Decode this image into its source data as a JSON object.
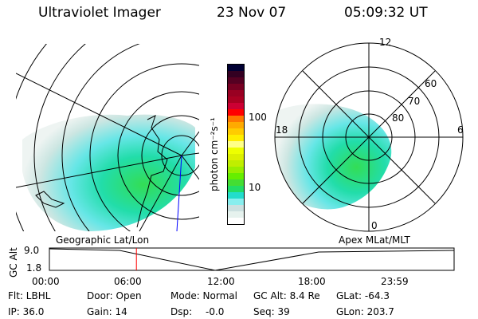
{
  "header": {
    "instrument": "Ultraviolet Imager",
    "date": "23 Nov 07",
    "time": "05:09:32 UT"
  },
  "colorbar": {
    "unit_label": "photon cm⁻²s⁻¹",
    "ticks": [
      "100",
      "10"
    ],
    "colors": [
      "#000033",
      "#330022",
      "#550022",
      "#770022",
      "#990022",
      "#aa0022",
      "#cc0033",
      "#ff0000",
      "#ff7700",
      "#ffaa00",
      "#ffcc00",
      "#ffee00",
      "#ffff88",
      "#eeff00",
      "#ddf000",
      "#c0ee00",
      "#99ee00",
      "#66ee00",
      "#44dd33",
      "#22dd66",
      "#22ddcc",
      "#88eeee",
      "#cce0e0",
      "#e6f2ee",
      "#ffffff"
    ]
  },
  "polar": {
    "labels": {
      "top": "12",
      "bottom": "0",
      "left": "18",
      "right": "6"
    },
    "rings": [
      "60",
      "70",
      "80"
    ]
  },
  "panels": {
    "left_label": "Geographic Lat/Lon",
    "right_label": "Apex MLat/MLT"
  },
  "altplot": {
    "ylabel": "GC Alt",
    "ymax": "9.0",
    "ymin": "1.8",
    "xticks": [
      "00:00",
      "06:00",
      "12:00",
      "18:00",
      "23:59"
    ],
    "current_time_fraction": 0.215
  },
  "status": {
    "flt": "Flt: LBHL",
    "ip": "IP: 36.0",
    "door": "Door: Open",
    "gain": "Gain: 14",
    "mode": "Mode: Normal",
    "dsp_label": "Dsp:",
    "dsp_value": "-0.0",
    "gcalt": "GC Alt: 8.4 Re",
    "seq": "Seq: 39",
    "glat": "GLat: -64.3",
    "glon": "GLon: 203.7"
  }
}
